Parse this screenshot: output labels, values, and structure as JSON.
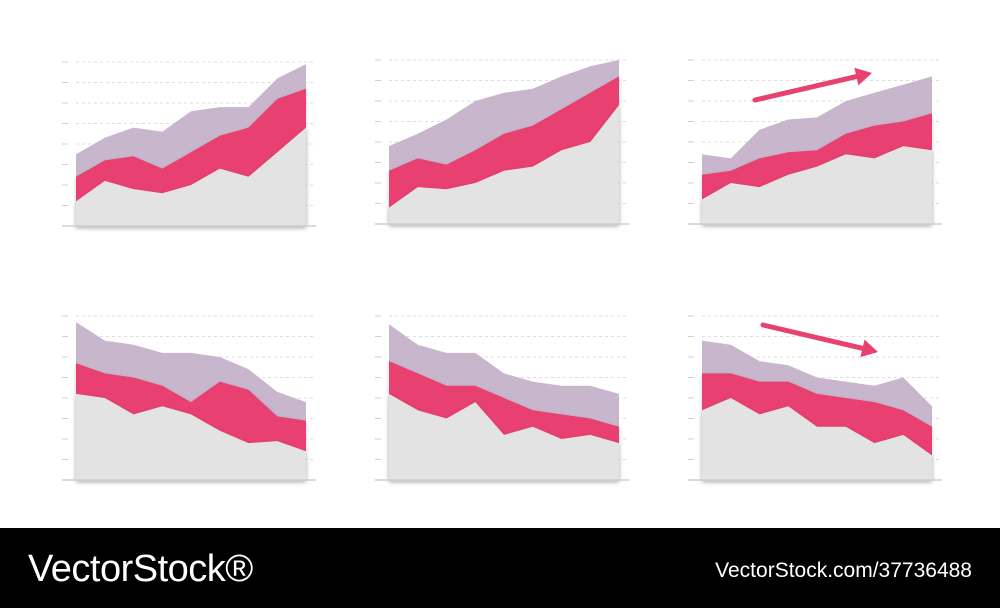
{
  "colors": {
    "base": "#e3e3e3",
    "pink": "#e8416f",
    "lavender": "#c8b6cc",
    "arrow": "#e8416f",
    "grid": "#dddddd",
    "axis": "#cfcfcf"
  },
  "chart_data": [
    {
      "type": "area",
      "stacked": true,
      "x": [
        0,
        1,
        2,
        3,
        4,
        5,
        6,
        7,
        8
      ],
      "ylim": [
        0,
        8
      ],
      "series": [
        {
          "values": [
            1.2,
            2.2,
            1.8,
            1.6,
            2.0,
            2.8,
            2.4,
            3.6,
            4.8
          ]
        },
        {
          "values": [
            1.2,
            1.0,
            1.6,
            1.2,
            1.6,
            1.6,
            2.4,
            2.6,
            1.9
          ]
        },
        {
          "values": [
            1.1,
            1.1,
            1.4,
            1.8,
            2.0,
            1.4,
            1.0,
            1.0,
            1.2
          ]
        }
      ],
      "trend_arrow": "none"
    },
    {
      "type": "area",
      "stacked": true,
      "x": [
        0,
        1,
        2,
        3,
        4,
        5,
        6,
        7,
        8
      ],
      "ylim": [
        0,
        8
      ],
      "series": [
        {
          "values": [
            0.8,
            1.8,
            1.7,
            2.0,
            2.6,
            2.8,
            3.6,
            4.0,
            5.8
          ]
        },
        {
          "values": [
            1.8,
            1.4,
            1.2,
            1.6,
            1.8,
            2.0,
            2.0,
            2.4,
            1.4
          ]
        },
        {
          "values": [
            1.2,
            1.2,
            2.2,
            2.4,
            2.0,
            1.8,
            1.6,
            1.3,
            0.8
          ]
        }
      ],
      "trend_arrow": "none"
    },
    {
      "type": "area",
      "stacked": true,
      "x": [
        0,
        1,
        2,
        3,
        4,
        5,
        6,
        7,
        8
      ],
      "ylim": [
        0,
        8
      ],
      "series": [
        {
          "values": [
            1.2,
            2.0,
            1.8,
            2.4,
            2.8,
            3.4,
            3.2,
            3.8,
            3.6
          ]
        },
        {
          "values": [
            1.2,
            0.6,
            1.4,
            1.1,
            0.8,
            1.0,
            1.6,
            1.2,
            1.8
          ]
        },
        {
          "values": [
            1.0,
            0.6,
            1.4,
            1.6,
            1.6,
            1.6,
            1.6,
            1.8,
            1.8
          ]
        }
      ],
      "trend_arrow": "up"
    },
    {
      "type": "area",
      "stacked": true,
      "x": [
        0,
        1,
        2,
        3,
        4,
        5,
        6,
        7,
        8
      ],
      "ylim": [
        0,
        8
      ],
      "series": [
        {
          "values": [
            4.2,
            4.0,
            3.2,
            3.6,
            3.2,
            2.4,
            1.8,
            1.9,
            1.4
          ]
        },
        {
          "values": [
            1.5,
            1.2,
            1.8,
            1.0,
            0.6,
            2.4,
            2.6,
            1.2,
            1.5
          ]
        },
        {
          "values": [
            2.0,
            1.6,
            1.6,
            1.6,
            2.4,
            1.2,
            1.0,
            1.2,
            0.9
          ]
        }
      ],
      "trend_arrow": "none"
    },
    {
      "type": "area",
      "stacked": true,
      "x": [
        0,
        1,
        2,
        3,
        4,
        5,
        6,
        7,
        8
      ],
      "ylim": [
        0,
        8
      ],
      "series": [
        {
          "values": [
            4.2,
            3.4,
            3.0,
            3.8,
            2.2,
            2.6,
            2.0,
            2.2,
            1.8
          ]
        },
        {
          "values": [
            1.6,
            1.8,
            1.6,
            0.8,
            1.8,
            0.8,
            1.2,
            0.8,
            0.8
          ]
        },
        {
          "values": [
            1.8,
            1.4,
            1.6,
            1.6,
            1.2,
            1.4,
            1.4,
            1.6,
            1.6
          ]
        }
      ],
      "trend_arrow": "none"
    },
    {
      "type": "area",
      "stacked": true,
      "x": [
        0,
        1,
        2,
        3,
        4,
        5,
        6,
        7,
        8
      ],
      "ylim": [
        0,
        8
      ],
      "series": [
        {
          "values": [
            3.4,
            4.0,
            3.2,
            3.6,
            2.6,
            2.6,
            1.8,
            2.2,
            1.2
          ]
        },
        {
          "values": [
            1.8,
            1.2,
            1.6,
            1.2,
            1.6,
            1.4,
            2.0,
            1.2,
            1.4
          ]
        },
        {
          "values": [
            1.6,
            1.4,
            1.0,
            0.8,
            0.8,
            0.8,
            0.8,
            1.6,
            1.0
          ]
        }
      ],
      "trend_arrow": "down"
    }
  ],
  "footer": {
    "logo": "VectorStock®",
    "url": "VectorStock.com/37736488"
  }
}
